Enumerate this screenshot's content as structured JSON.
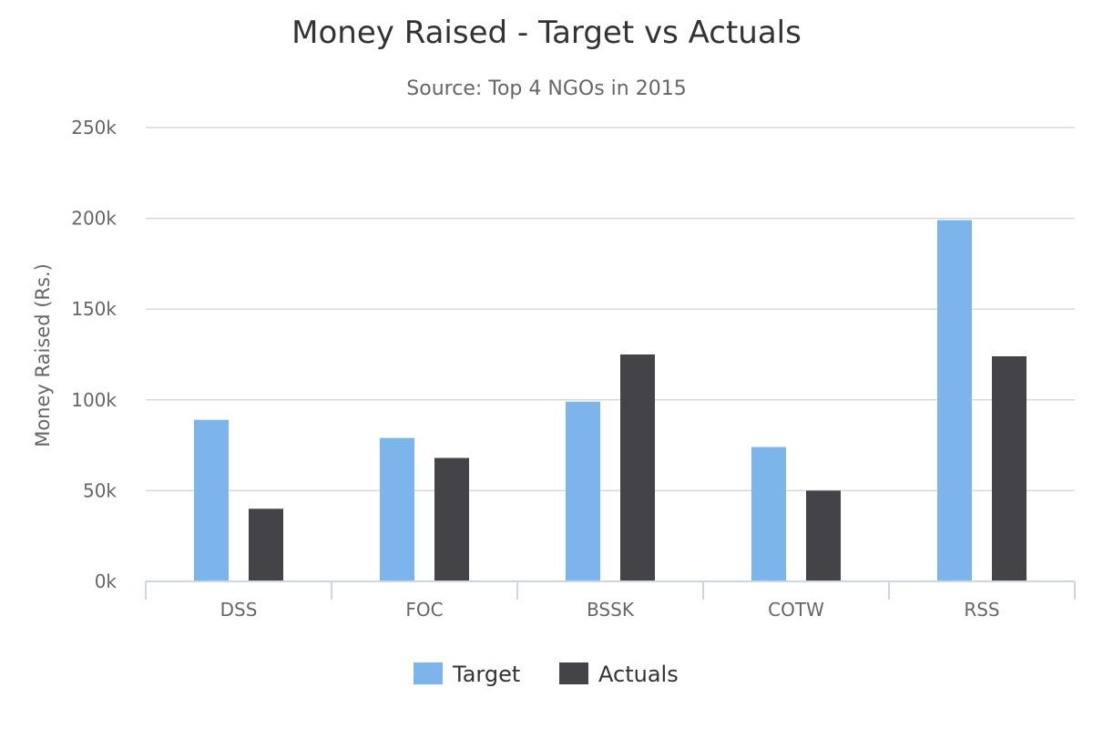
{
  "chart_data": {
    "type": "bar",
    "title": "Money Raised - Target vs Actuals",
    "subtitle": "Source: Top 4 NGOs in 2015",
    "ylabel": "Money Raised (Rs.)",
    "xlabel": "",
    "categories": [
      "DSS",
      "FOC",
      "BSSK",
      "COTW",
      "RSS"
    ],
    "series": [
      {
        "name": "Target",
        "color": "#7cb5ec",
        "values": [
          89000,
          79000,
          99000,
          74000,
          199000
        ]
      },
      {
        "name": "Actuals",
        "color": "#434348",
        "values": [
          40000,
          68000,
          125000,
          50000,
          124000
        ]
      }
    ],
    "ylim": [
      0,
      250000
    ],
    "yticks": [
      0,
      50000,
      100000,
      150000,
      200000,
      250000
    ],
    "ytick_labels": [
      "0k",
      "50k",
      "100k",
      "150k",
      "200k",
      "250k"
    ],
    "grid": true,
    "legend_position": "bottom-center"
  }
}
